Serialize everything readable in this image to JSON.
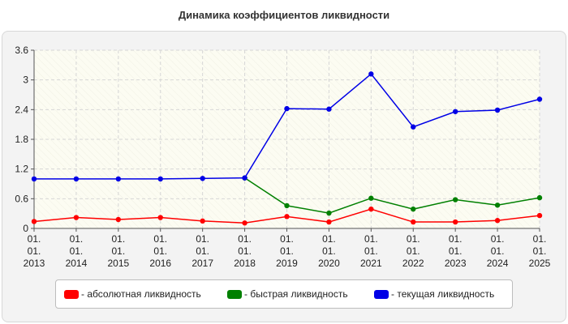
{
  "chart_data": {
    "type": "line",
    "title": "Динамика коэффициентов ликвидности",
    "categories": [
      [
        "01.",
        "01.",
        "2013"
      ],
      [
        "01.",
        "01.",
        "2014"
      ],
      [
        "01.",
        "01.",
        "2015"
      ],
      [
        "01.",
        "01.",
        "2016"
      ],
      [
        "01.",
        "01.",
        "2017"
      ],
      [
        "01.",
        "01.",
        "2018"
      ],
      [
        "01.",
        "01.",
        "2019"
      ],
      [
        "01.",
        "01.",
        "2020"
      ],
      [
        "01.",
        "01.",
        "2021"
      ],
      [
        "01.",
        "01.",
        "2022"
      ],
      [
        "01.",
        "01.",
        "2023"
      ],
      [
        "01.",
        "01.",
        "2024"
      ],
      [
        "01.",
        "01.",
        "2025"
      ]
    ],
    "ylim": [
      0,
      3.6
    ],
    "yticks": [
      "0",
      "0.6",
      "1.2",
      "1.8",
      "2.4",
      "3",
      "3.6"
    ],
    "grid": true,
    "legend_position": "bottom",
    "series": [
      {
        "name": "- абсолютная ликвидность",
        "color": "#ff0000",
        "values": [
          0.14,
          0.22,
          0.18,
          0.22,
          0.15,
          0.11,
          0.24,
          0.13,
          0.39,
          0.13,
          0.13,
          0.16,
          0.26
        ]
      },
      {
        "name": "- быстрая ликвидность",
        "color": "#008000",
        "values": [
          null,
          null,
          null,
          null,
          null,
          1.02,
          0.46,
          0.31,
          0.61,
          0.39,
          0.58,
          0.47,
          0.62
        ]
      },
      {
        "name": "- текущая ликвидность",
        "color": "#0000e6",
        "values": [
          1.0,
          1.0,
          1.0,
          1.0,
          1.01,
          1.02,
          2.42,
          2.41,
          3.12,
          2.05,
          2.36,
          2.39,
          2.61
        ]
      }
    ]
  }
}
